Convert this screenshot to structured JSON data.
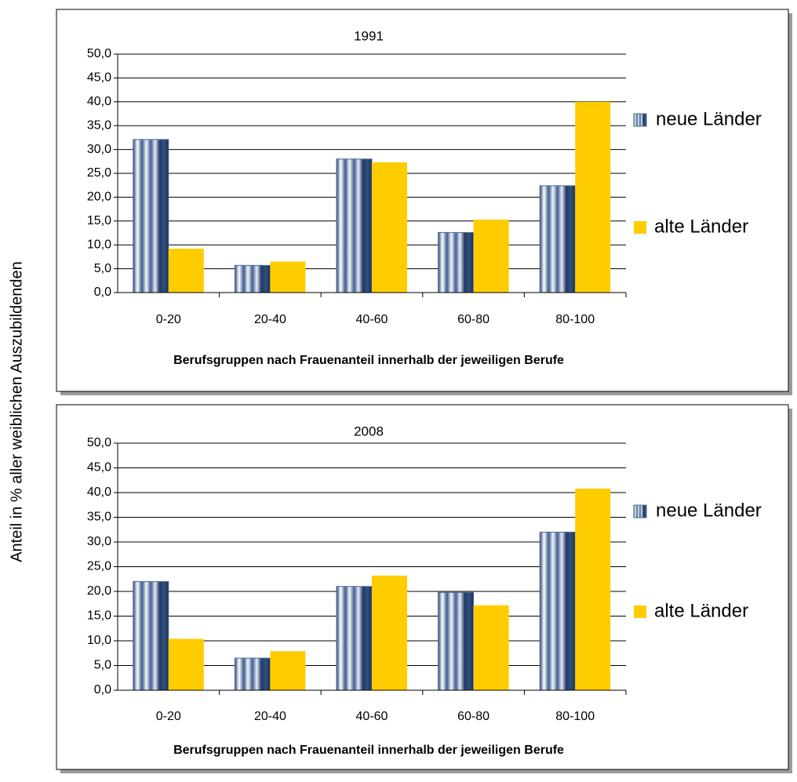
{
  "ylabel": "Anteil in % aller weiblichen Auszubildenden",
  "chart_data": [
    {
      "type": "bar",
      "title": "1991",
      "xlabel": "Berufsgruppen nach Frauenanteil innerhalb der jeweiligen Berufe",
      "categories": [
        "0-20",
        "20-40",
        "40-60",
        "60-80",
        "80-100"
      ],
      "series": [
        {
          "name": "neue Länder",
          "color": "#4a6a9a",
          "values": [
            32.1,
            5.7,
            28.0,
            12.6,
            22.4
          ]
        },
        {
          "name": "alte Länder",
          "color": "#ffcc00",
          "values": [
            9.2,
            6.5,
            27.3,
            15.3,
            40.0
          ]
        }
      ],
      "ylim": [
        0,
        50
      ],
      "yticks": [
        {
          "value": 0,
          "label": "0,0"
        },
        {
          "value": 5,
          "label": "5,0"
        },
        {
          "value": 10,
          "label": "10,0"
        },
        {
          "value": 15,
          "label": "15,0"
        },
        {
          "value": 20,
          "label": "20,0"
        },
        {
          "value": 25,
          "label": "25,0"
        },
        {
          "value": 30,
          "label": "30,0"
        },
        {
          "value": 35,
          "label": "35,0"
        },
        {
          "value": 40,
          "label": "40,0"
        },
        {
          "value": 45,
          "label": "45,0"
        },
        {
          "value": 50,
          "label": "50,0"
        }
      ],
      "grid": true,
      "legend": "right"
    },
    {
      "type": "bar",
      "title": "2008",
      "xlabel": "Berufsgruppen nach Frauenanteil innerhalb der jeweiligen Berufe",
      "categories": [
        "0-20",
        "20-40",
        "40-60",
        "60-80",
        "80-100"
      ],
      "series": [
        {
          "name": "neue Länder",
          "color": "#4a6a9a",
          "values": [
            22.0,
            6.5,
            21.0,
            19.8,
            32.0
          ]
        },
        {
          "name": "alte Länder",
          "color": "#ffcc00",
          "values": [
            10.4,
            7.9,
            23.2,
            17.2,
            40.8
          ]
        }
      ],
      "ylim": [
        0,
        50
      ],
      "yticks": [
        {
          "value": 0,
          "label": "0,0"
        },
        {
          "value": 5,
          "label": "5,0"
        },
        {
          "value": 10,
          "label": "10,0"
        },
        {
          "value": 15,
          "label": "15,0"
        },
        {
          "value": 20,
          "label": "20,0"
        },
        {
          "value": 25,
          "label": "25,0"
        },
        {
          "value": 30,
          "label": "30,0"
        },
        {
          "value": 35,
          "label": "35,0"
        },
        {
          "value": 40,
          "label": "40,0"
        },
        {
          "value": 45,
          "label": "45,0"
        },
        {
          "value": 50,
          "label": "50,0"
        }
      ],
      "grid": true,
      "legend": "right"
    }
  ]
}
